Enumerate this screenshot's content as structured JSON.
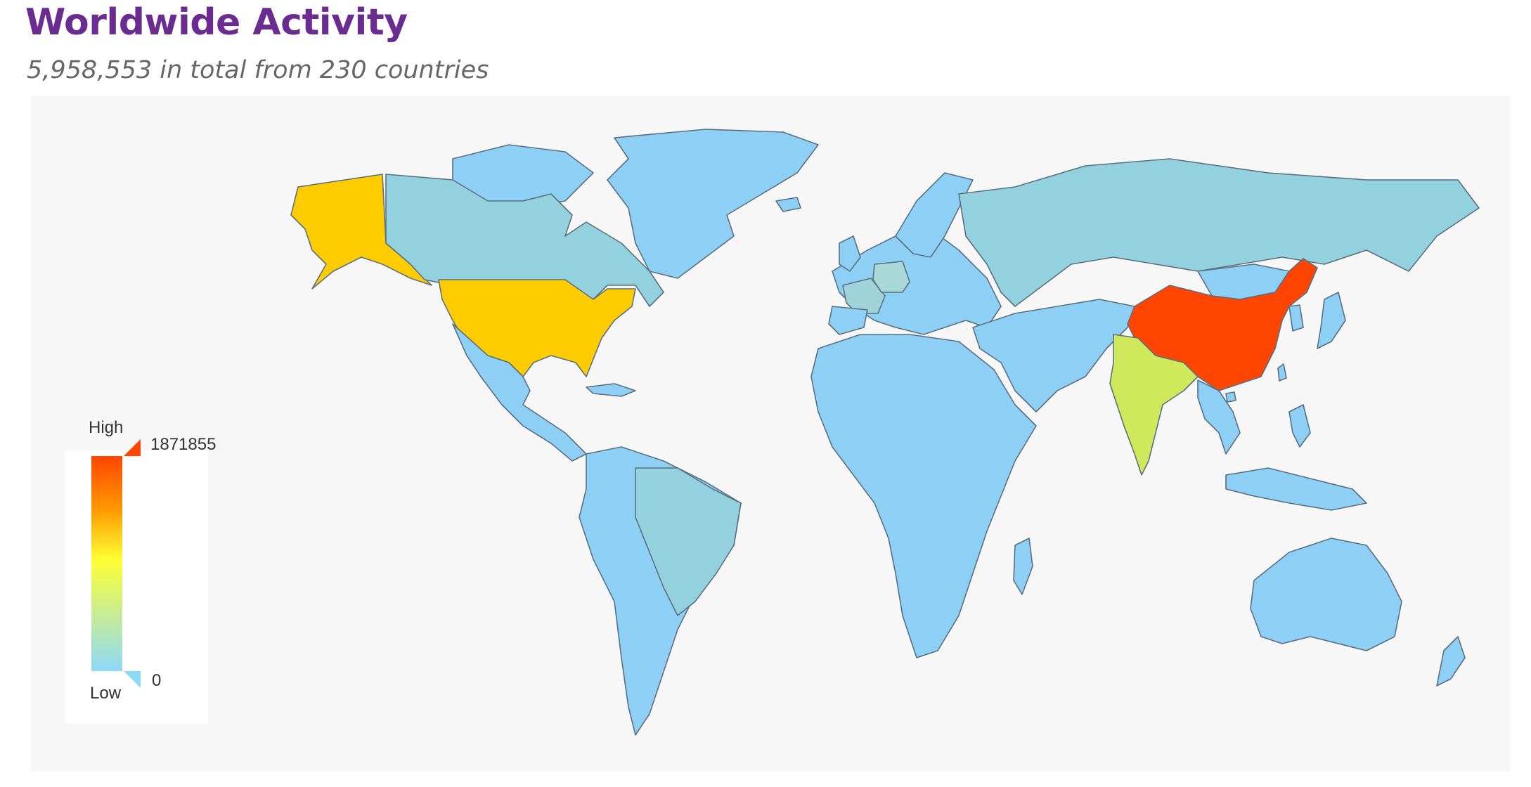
{
  "header": {
    "title": "Worldwide Activity",
    "subtitle": "5,958,553 in total from 230 countries"
  },
  "legend": {
    "high_label": "High",
    "low_label": "Low",
    "max_value": "1871855",
    "min_value": "0",
    "colors": {
      "high": "#ff4500",
      "mid_high": "#ff9900",
      "mid": "#ffff33",
      "low": "#8ed8f8"
    }
  },
  "map": {
    "type": "choropleth",
    "projection": "world",
    "default_color": "#8ecff5",
    "regions": [
      {
        "id": "china",
        "color": "#ff4500"
      },
      {
        "id": "usa",
        "color": "#ffcc00"
      },
      {
        "id": "alaska",
        "color": "#ffcc00"
      },
      {
        "id": "india",
        "color": "#cfe95a"
      },
      {
        "id": "germany",
        "color": "#a8d8d8"
      },
      {
        "id": "canada",
        "color": "#93d1df"
      },
      {
        "id": "russia",
        "color": "#93d1df"
      },
      {
        "id": "brazil",
        "color": "#93d1df"
      },
      {
        "id": "france",
        "color": "#a0d2da"
      }
    ]
  }
}
